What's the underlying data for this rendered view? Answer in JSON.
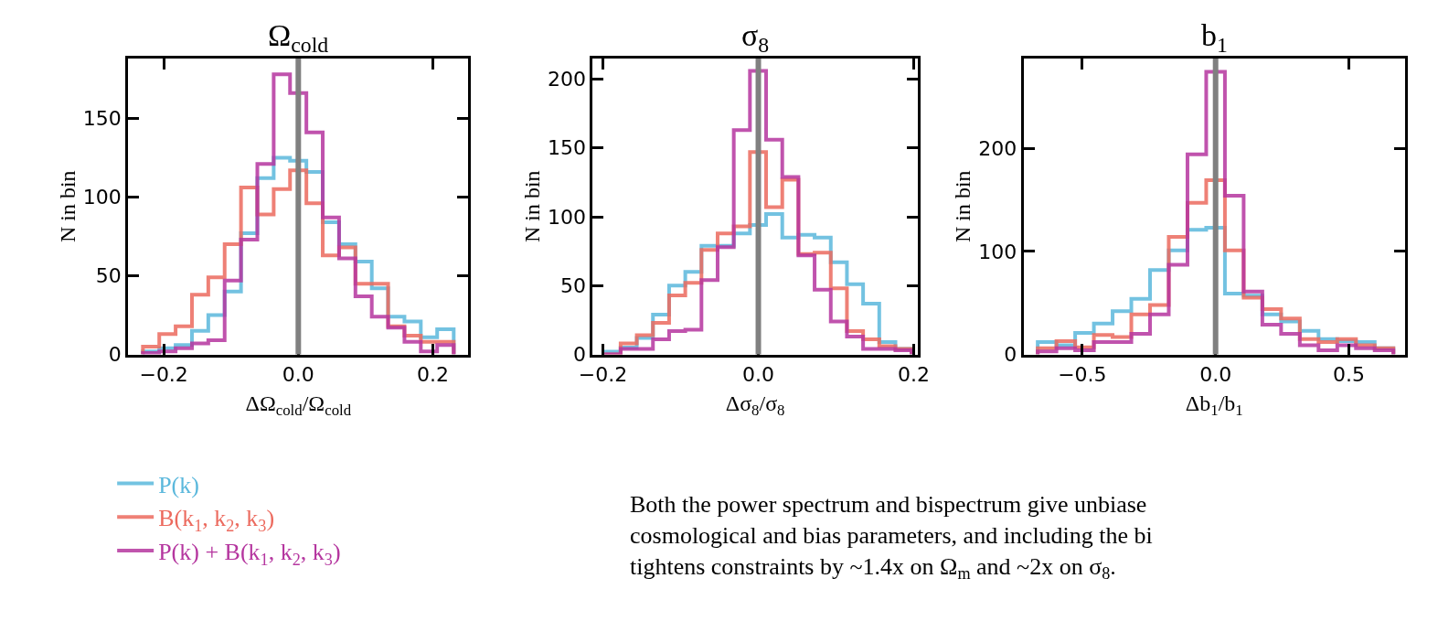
{
  "chart_data": [
    {
      "type": "histogram",
      "title": "Ω$_{cold}$",
      "xlabel": "ΔΩ$_{cold}$/Ω$_{cold}$",
      "ylabel": "N in bin",
      "bins": [
        -0.231,
        -0.2067,
        -0.1824,
        -0.1581,
        -0.1338,
        -0.1095,
        -0.0852,
        -0.0609,
        -0.0366,
        -0.0123,
        0.012,
        0.0363,
        0.0606,
        0.0849,
        0.1092,
        0.1335,
        0.1578,
        0.1821,
        0.2064,
        0.231
      ],
      "series": [
        {
          "name": "P(k)",
          "color": "#5bb8dc",
          "values": [
            2,
            4,
            6,
            15,
            25,
            40,
            77,
            112,
            125,
            123,
            116,
            84,
            70,
            59,
            42,
            24,
            21,
            11,
            16
          ]
        },
        {
          "name": "B(k$_{1}$, k$_{2}$, k$_{3}$)",
          "color": "#ec6a5e",
          "values": [
            5,
            13,
            18,
            38,
            49,
            70,
            106,
            89,
            105,
            117,
            96,
            63,
            68,
            45,
            45,
            18,
            12,
            8,
            8
          ]
        },
        {
          "name": "P(k) + B(k$_{1}$, k$_{2}$, k$_{3}$)",
          "color": "#b5369f",
          "values": [
            1,
            2,
            4,
            7,
            9,
            47,
            73,
            121,
            178,
            166,
            141,
            87,
            61,
            37,
            24,
            17,
            8,
            2,
            6
          ]
        }
      ],
      "xlim": [
        -0.253,
        0.253
      ],
      "xticks": [
        {
          "value": -0.2,
          "label": "−0.2"
        },
        {
          "value": 0,
          "label": "0.0"
        },
        {
          "value": 0.2,
          "label": "0.2"
        }
      ],
      "ylim": [
        0,
        188
      ],
      "yticks": [
        0,
        50,
        100,
        150
      ],
      "ref_lines": [
        {
          "axis": "x",
          "value": 0,
          "color": "#808080"
        }
      ],
      "legend": "bottom left",
      "annotations": [
        "Both the power spectrum and bispectrum give unbiase\ncosmological and bias parameters, and including the bi\ntightens constraints by ~1.4x on Ω$_{m}$ and ~2x on σ$_{8}$."
      ]
    },
    {
      "type": "histogram",
      "title": "σ$_{8}$",
      "xlabel": "Δσ$_{8}$/σ$_{8}$",
      "ylabel": "N in bin",
      "bins": [
        -0.198,
        -0.1772,
        -0.1564,
        -0.1356,
        -0.1148,
        -0.094,
        -0.0732,
        -0.0524,
        -0.0316,
        -0.0108,
        0.01,
        0.0308,
        0.0516,
        0.0724,
        0.0932,
        0.114,
        0.1348,
        0.1556,
        0.1764,
        0.1972
      ],
      "series": [
        {
          "color": "#5bb8dc",
          "values": [
            2,
            5,
            12,
            29,
            50,
            60,
            79,
            79,
            88,
            94,
            102,
            85,
            87,
            85,
            67,
            51,
            37,
            9,
            4
          ]
        },
        {
          "color": "#ec6a5e",
          "values": [
            0,
            8,
            14,
            23,
            43,
            52,
            76,
            88,
            93,
            147,
            107,
            127,
            73,
            74,
            48,
            17,
            11,
            6,
            4
          ]
        },
        {
          "color": "#b5369f",
          "values": [
            0,
            4,
            4,
            11,
            17,
            18,
            54,
            78,
            163,
            206,
            156,
            129,
            72,
            47,
            24,
            13,
            4,
            4,
            3
          ]
        }
      ],
      "xlim": [
        -0.213,
        0.205
      ],
      "xticks": [
        {
          "value": -0.2,
          "label": "−0.2"
        },
        {
          "value": 0,
          "label": "0.0"
        },
        {
          "value": 0.2,
          "label": "0.2"
        }
      ],
      "ylim": [
        0,
        215
      ],
      "yticks": [
        0,
        50,
        100,
        150,
        200
      ],
      "ref_lines": [
        {
          "axis": "x",
          "value": 0,
          "color": "#808080"
        }
      ]
    },
    {
      "type": "histogram",
      "title": "b$_{1}$",
      "xlabel": "Δb$_{1}$/b$_{1}$",
      "ylabel": "N in bin",
      "bins": [
        -0.667,
        -0.5968,
        -0.5266,
        -0.4564,
        -0.3862,
        -0.316,
        -0.2458,
        -0.1756,
        -0.1054,
        -0.0352,
        0.035,
        0.1052,
        0.1754,
        0.2456,
        0.3158,
        0.386,
        0.4562,
        0.5264,
        0.5966,
        0.6668
      ],
      "series": [
        {
          "color": "#5bb8dc",
          "values": [
            12,
            9,
            21,
            30,
            42,
            54,
            82,
            101,
            121,
            123,
            59,
            57,
            39,
            32,
            23,
            15,
            13,
            12,
            6
          ]
        },
        {
          "color": "#ec6a5e",
          "values": [
            6,
            13,
            7,
            19,
            17,
            39,
            48,
            114,
            147,
            169,
            101,
            55,
            44,
            35,
            15,
            12,
            15,
            9,
            6
          ]
        },
        {
          "color": "#b5369f",
          "values": [
            3,
            6,
            4,
            12,
            12,
            20,
            39,
            87,
            194,
            274,
            154,
            61,
            29,
            20,
            9,
            4,
            9,
            6,
            4
          ]
        }
      ],
      "xlim": [
        -0.72,
        0.71
      ],
      "xticks": [
        {
          "value": -0.5,
          "label": "−0.5"
        },
        {
          "value": 0,
          "label": "0.0"
        },
        {
          "value": 0.5,
          "label": "0.5"
        }
      ],
      "ylim": [
        0,
        287
      ],
      "yticks": [
        0,
        100,
        200
      ],
      "ref_lines": [
        {
          "axis": "x",
          "value": 0,
          "color": "#808080"
        }
      ]
    }
  ]
}
